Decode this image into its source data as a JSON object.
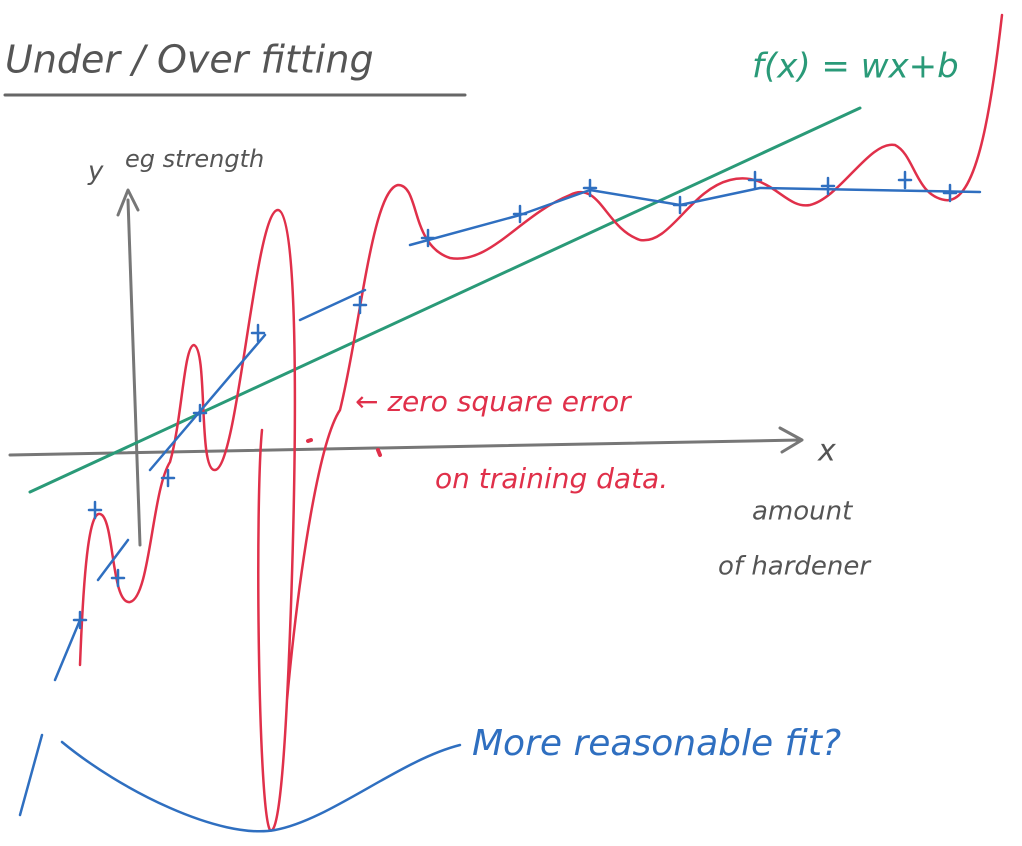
{
  "title": "Under / Over fitting",
  "function_label": "f(x) = wx+b",
  "y_axis": {
    "label": "y",
    "description": "eg strength"
  },
  "x_axis": {
    "label": "x",
    "description_lines": [
      "amount",
      "of hardener"
    ]
  },
  "annotations": {
    "overfit_lines": [
      "← zero square error",
      "on training data."
    ],
    "fit": "More reasonable fit?"
  }
}
